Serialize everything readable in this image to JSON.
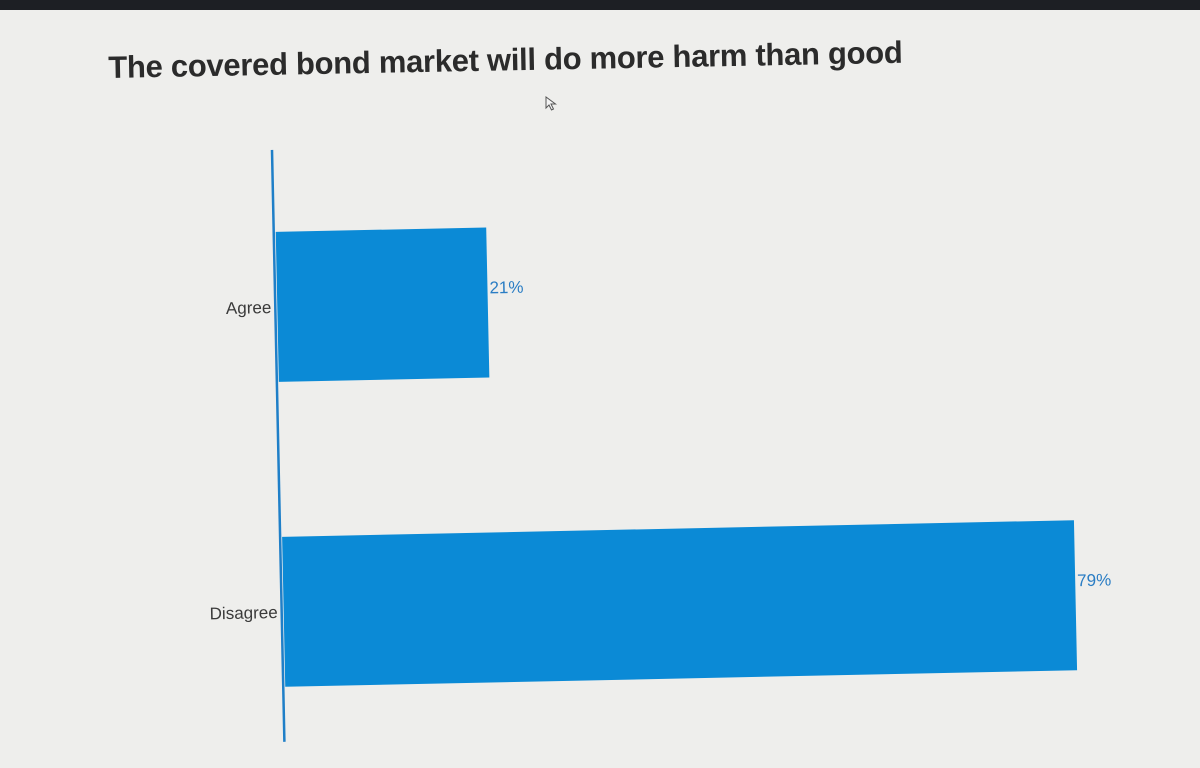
{
  "chart_data": {
    "type": "bar",
    "orientation": "horizontal",
    "title": "The covered bond market will do more harm than good",
    "categories": [
      "Agree",
      "Disagree"
    ],
    "values": [
      21,
      79
    ],
    "value_labels": [
      "21%",
      "79%"
    ],
    "xlim": [
      0,
      79
    ],
    "xlabel": "",
    "ylabel": "",
    "grid": false,
    "legend": "none",
    "bar_color": "#0b8ad6",
    "axis_color": "#1f7fc8",
    "value_label_color": "#2a7dc4"
  },
  "colors": {
    "background": "#eeeeec",
    "title": "#2b2b2b",
    "category_text": "#3a3a3a"
  },
  "icons": {
    "cursor": "mouse-pointer-icon"
  }
}
